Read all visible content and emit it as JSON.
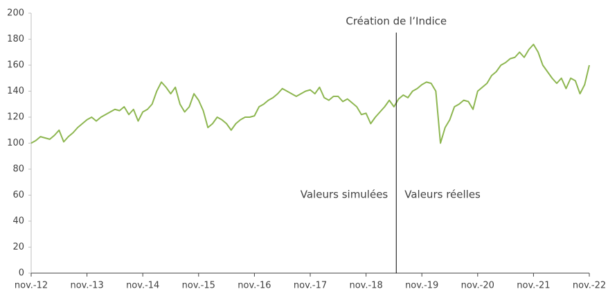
{
  "chart_data": {
    "type": "line",
    "categories": [
      "nov.-12",
      null,
      null,
      null,
      null,
      null,
      null,
      null,
      null,
      null,
      null,
      null,
      "nov.-13",
      null,
      null,
      null,
      null,
      null,
      null,
      null,
      null,
      null,
      null,
      null,
      "nov.-14",
      null,
      null,
      null,
      null,
      null,
      null,
      null,
      null,
      null,
      null,
      null,
      "nov.-15",
      null,
      null,
      null,
      null,
      null,
      null,
      null,
      null,
      null,
      null,
      null,
      "nov.-16",
      null,
      null,
      null,
      null,
      null,
      null,
      null,
      null,
      null,
      null,
      null,
      "nov.-17",
      null,
      null,
      null,
      null,
      null,
      null,
      null,
      null,
      null,
      null,
      null,
      "nov.-18",
      null,
      null,
      null,
      null,
      null,
      null,
      null,
      null,
      null,
      null,
      null,
      "nov.-19",
      null,
      null,
      null,
      null,
      null,
      null,
      null,
      null,
      null,
      null,
      null,
      "nov.-20",
      null,
      null,
      null,
      null,
      null,
      null,
      null,
      null,
      null,
      null,
      null,
      "nov.-21",
      null,
      null,
      null,
      null,
      null,
      null,
      null,
      null,
      null,
      null,
      null,
      "nov.-22"
    ],
    "series": [
      {
        "color": "#8db650",
        "values": [
          100,
          102,
          105,
          104,
          103,
          106,
          110,
          101,
          105,
          108,
          112,
          115,
          118,
          120,
          117,
          120,
          122,
          124,
          126,
          125,
          128,
          122,
          126,
          117,
          124,
          126,
          130,
          140,
          147,
          143,
          138,
          143,
          130,
          124,
          128,
          138,
          133,
          125,
          112,
          115,
          120,
          118,
          115,
          110,
          115,
          118,
          120,
          120,
          121,
          128,
          130,
          133,
          135,
          138,
          142,
          140,
          138,
          136,
          138,
          140,
          141,
          138,
          143,
          135,
          133,
          136,
          136,
          132,
          134,
          131,
          128,
          122,
          123,
          115,
          120,
          124,
          128,
          133,
          128,
          134,
          137,
          135,
          140,
          142,
          145,
          147,
          146,
          140,
          100,
          112,
          118,
          128,
          130,
          133,
          132,
          126,
          140,
          143,
          146,
          152,
          155,
          160,
          162,
          165,
          166,
          170,
          166,
          172,
          176,
          170,
          160,
          155,
          150,
          146,
          150,
          142,
          150,
          148,
          138,
          145,
          160
        ]
      }
    ],
    "ylim": [
      0,
      200
    ],
    "yticks": [
      0,
      20,
      40,
      60,
      80,
      100,
      120,
      140,
      160,
      180,
      200
    ],
    "event": {
      "label": "Création de l’Indice",
      "x": 78.5,
      "before": "Valeurs simulées",
      "after": "Valeurs réelles"
    }
  }
}
